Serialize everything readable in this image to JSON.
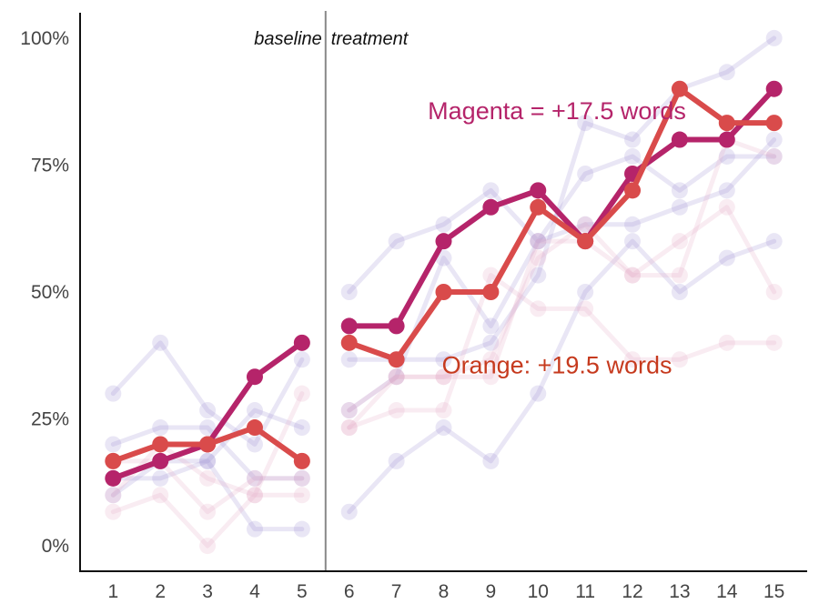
{
  "chart_data": {
    "type": "line",
    "x": [
      1,
      2,
      3,
      4,
      5,
      6,
      7,
      8,
      9,
      10,
      11,
      12,
      13,
      14,
      15
    ],
    "xlim": [
      0.3,
      15.7
    ],
    "ylim": [
      -5,
      105
    ],
    "y_ticks": [
      {
        "value": 0,
        "label": "0%"
      },
      {
        "value": 25,
        "label": "25%"
      },
      {
        "value": 50,
        "label": "50%"
      },
      {
        "value": 75,
        "label": "75%"
      },
      {
        "value": 100,
        "label": "100%"
      }
    ],
    "x_tick_labels": [
      "1",
      "2",
      "3",
      "4",
      "5",
      "6",
      "7",
      "8",
      "9",
      "10",
      "11",
      "12",
      "13",
      "14",
      "15"
    ],
    "phase_change_x": 5.5,
    "phase_labels": {
      "before": "baseline",
      "after": "treatment"
    },
    "grid": false,
    "highlight_series": [
      {
        "color": "#b5246a",
        "values": [
          13.3,
          16.7,
          20,
          33.3,
          40,
          43.3,
          43.3,
          60,
          66.7,
          70,
          60,
          73.3,
          80,
          80,
          90
        ]
      },
      {
        "color": "#d94b4b",
        "values": [
          16.7,
          20,
          20,
          23.3,
          16.7,
          40,
          36.7,
          50,
          50,
          66.7,
          60,
          70,
          90,
          83.3,
          83.3
        ]
      }
    ],
    "background_series": [
      {
        "color": "#9d8bd0",
        "values": [
          30,
          40,
          26.7,
          20,
          36.7,
          50,
          60,
          63.3,
          70,
          60,
          73.3,
          76.7,
          70,
          76.7,
          76.7
        ]
      },
      {
        "color": "#9d8bd0",
        "values": [
          20,
          23.3,
          23.3,
          13.3,
          13.3,
          36.7,
          36.7,
          36.7,
          40,
          53.3,
          83.3,
          80,
          90,
          93.3,
          100
        ]
      },
      {
        "color": "#9d8bd0",
        "values": [
          13.3,
          13.3,
          16.7,
          3.3,
          3.3,
          6.7,
          16.7,
          23.3,
          16.7,
          30,
          50,
          60,
          50,
          56.7,
          60
        ]
      },
      {
        "color": "#9d8bd0",
        "values": [
          10,
          16.7,
          16.7,
          26.7,
          23.3,
          26.7,
          33.3,
          56.7,
          43.3,
          60,
          63.3,
          63.3,
          66.7,
          70,
          80
        ]
      },
      {
        "color": "#e3a7c6",
        "values": [
          6.7,
          10,
          0,
          10,
          10,
          23.3,
          26.7,
          26.7,
          53.3,
          46.7,
          46.7,
          36.7,
          36.7,
          40,
          40
        ]
      },
      {
        "color": "#e3a7c6",
        "values": [
          10,
          20,
          13.3,
          10,
          30,
          23.3,
          33.3,
          33.3,
          33.3,
          60,
          60,
          53.3,
          60,
          66.7,
          50
        ]
      },
      {
        "color": "#e3a7c6",
        "values": [
          16.7,
          16.7,
          6.7,
          13.3,
          13.3,
          26.7,
          33.3,
          33.3,
          36.7,
          56.7,
          63.3,
          53.3,
          53.3,
          80,
          76.7
        ]
      }
    ],
    "annotations": [
      {
        "text": "Magenta = +17.5 words",
        "x": 10.4,
        "y": 84,
        "color": "#b5246a"
      },
      {
        "text": "Orange: +19.5 words",
        "x": 10.4,
        "y": 34,
        "color": "#c63a1e"
      }
    ]
  }
}
